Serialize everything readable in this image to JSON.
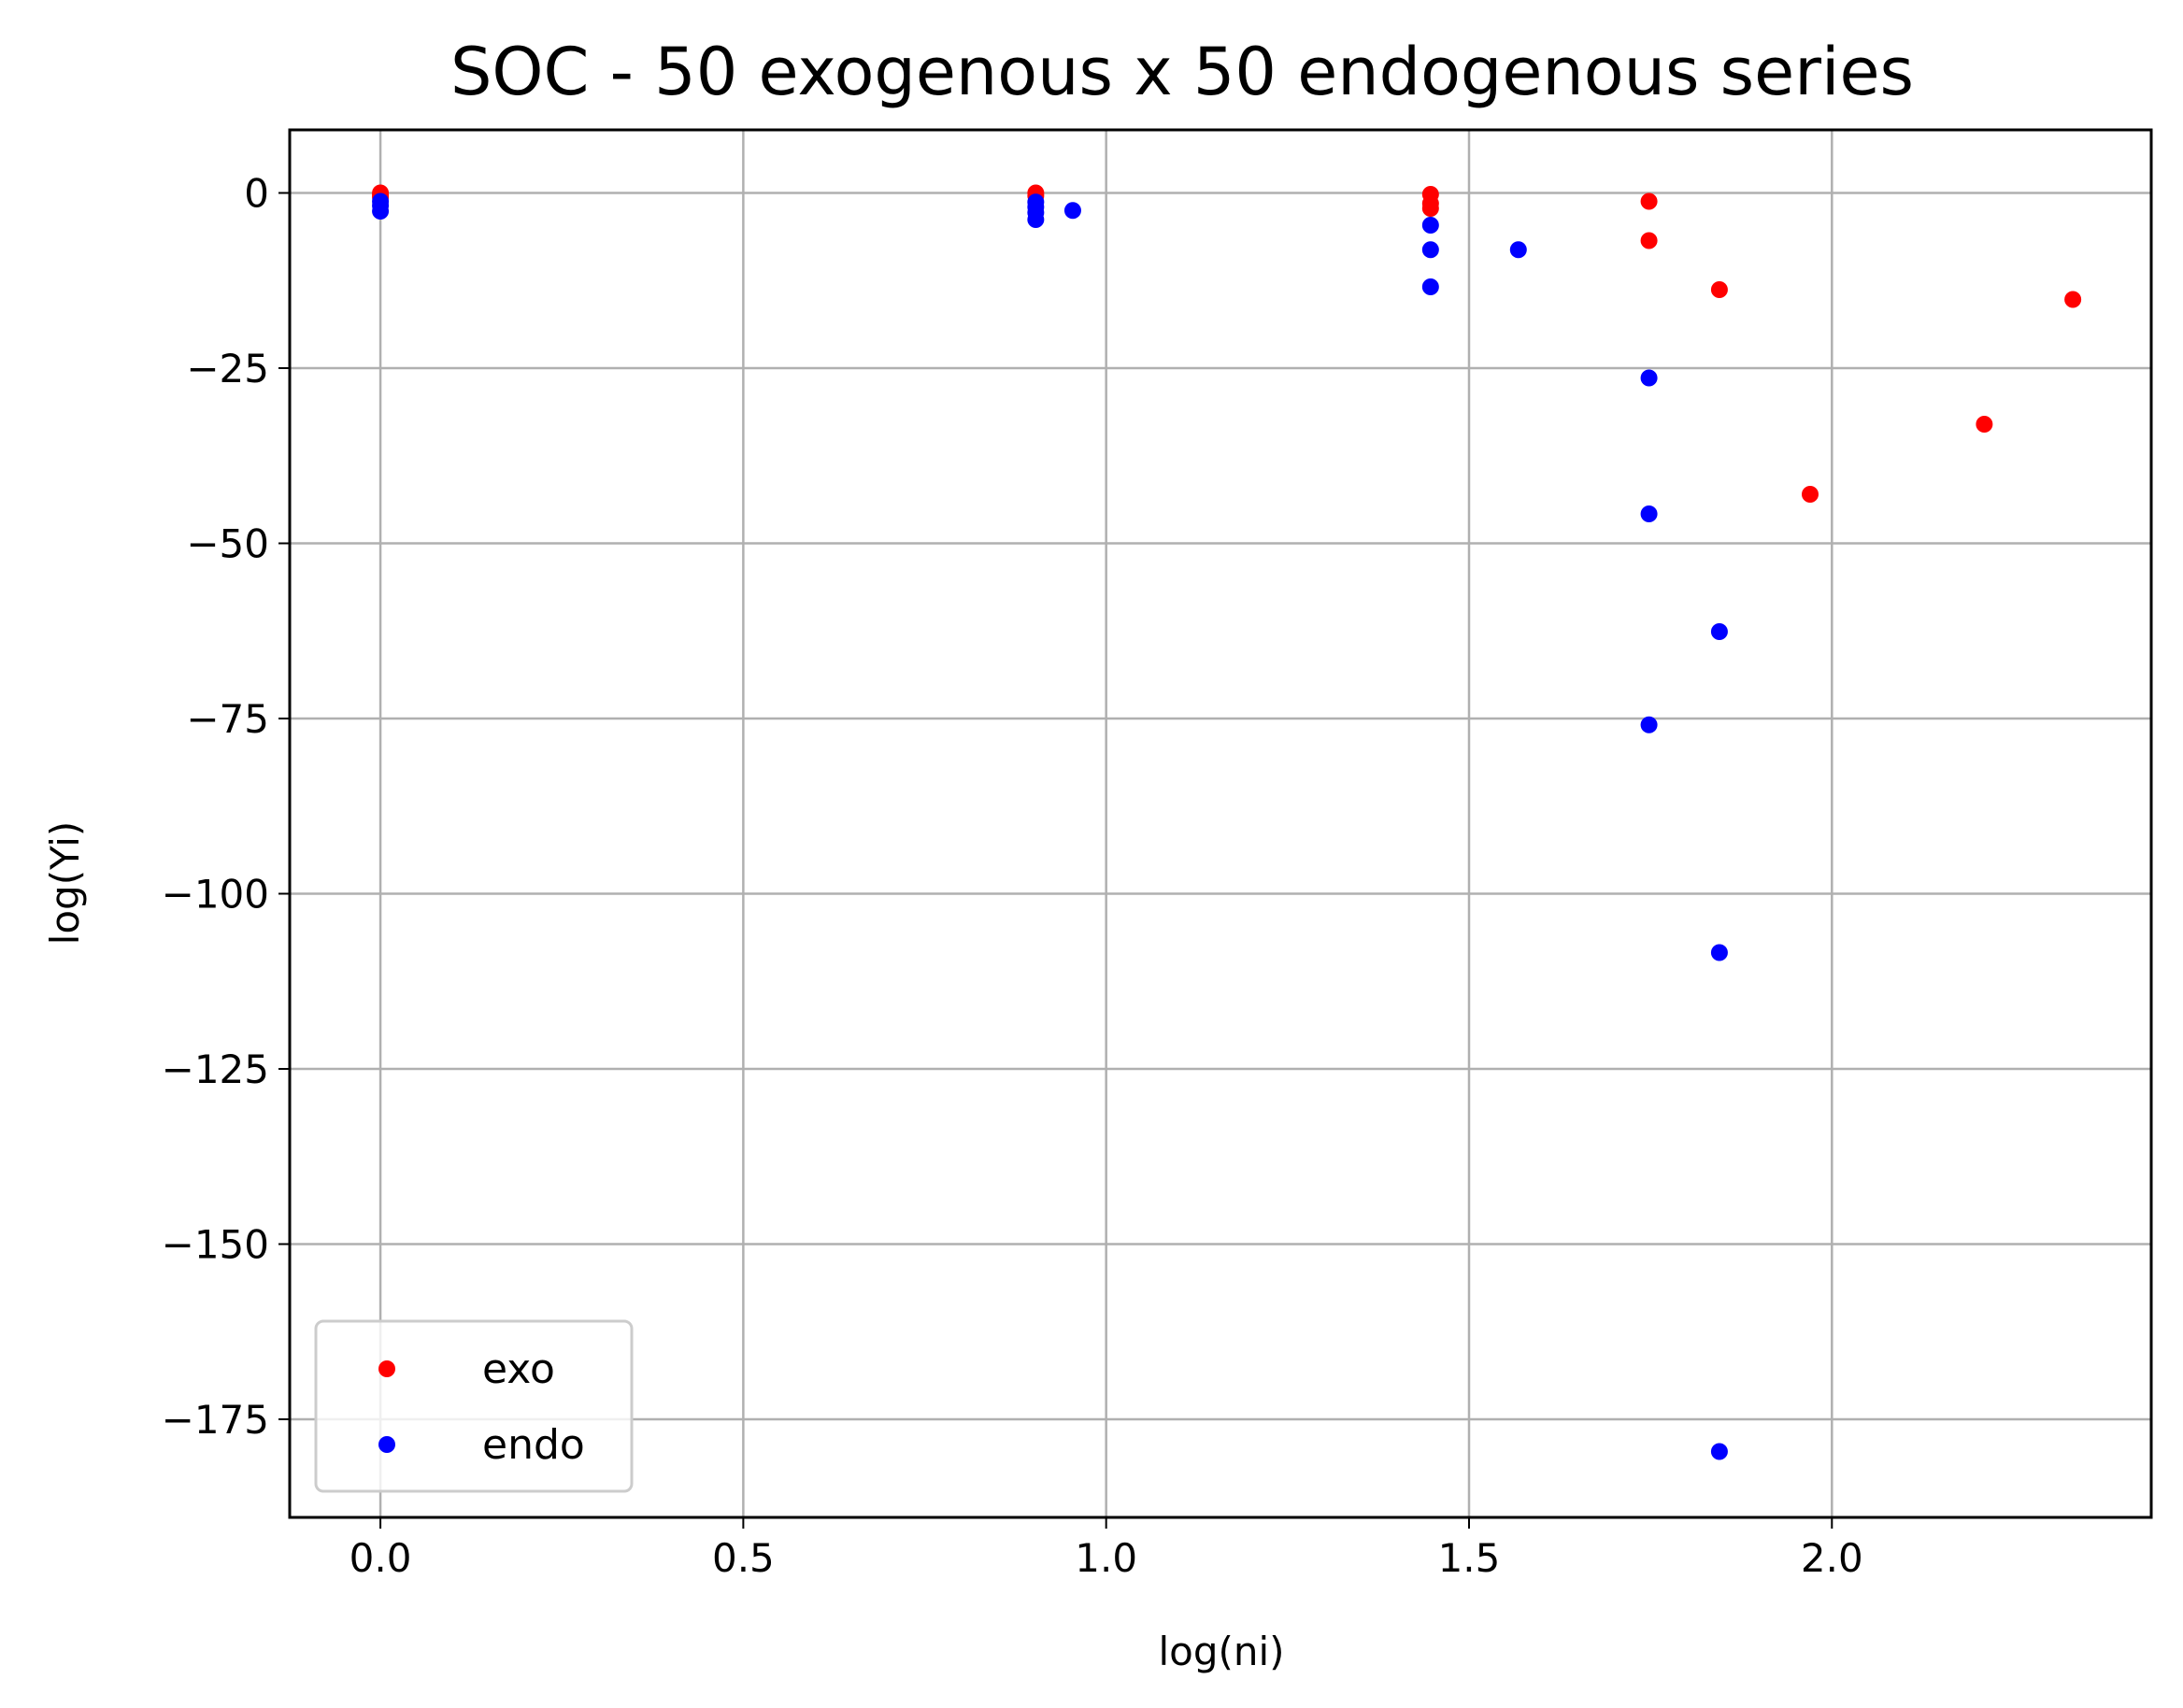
{
  "chart_data": {
    "type": "scatter",
    "title": "SOC - 50 exogenous x 50 endogenous series",
    "xlabel": "log(ni)",
    "ylabel": "log(Yi)",
    "xlim": [
      -0.125,
      2.44
    ],
    "ylim": [
      -189,
      9
    ],
    "xticks": [
      0.0,
      0.5,
      1.0,
      1.5,
      2.0
    ],
    "xtick_labels": [
      "0.0",
      "0.5",
      "1.0",
      "1.5",
      "2.0"
    ],
    "yticks": [
      0,
      -25,
      -50,
      -75,
      -100,
      -125,
      -150,
      -175
    ],
    "ytick_labels": [
      "0",
      "−25",
      "−50",
      "−75",
      "−100",
      "−125",
      "−150",
      "−175"
    ],
    "grid": true,
    "legend_position": "lower-left",
    "series": [
      {
        "name": "exo",
        "color": "#ff0000",
        "points": [
          [
            0.0,
            0.0
          ],
          [
            0.0,
            -0.3
          ],
          [
            0.0,
            -0.6
          ],
          [
            0.903,
            0.0
          ],
          [
            0.903,
            -0.4
          ],
          [
            1.447,
            -0.2
          ],
          [
            1.447,
            -1.5
          ],
          [
            1.447,
            -2.2
          ],
          [
            1.748,
            -1.2
          ],
          [
            1.748,
            -6.8
          ],
          [
            1.845,
            -13.8
          ],
          [
            1.97,
            -43.0
          ],
          [
            2.21,
            -33.0
          ],
          [
            2.332,
            -15.2
          ]
        ]
      },
      {
        "name": "endo",
        "color": "#0000ff",
        "points": [
          [
            0.0,
            -1.2
          ],
          [
            0.0,
            -1.8
          ],
          [
            0.0,
            -2.6
          ],
          [
            0.903,
            -1.3
          ],
          [
            0.903,
            -2.0
          ],
          [
            0.903,
            -2.8
          ],
          [
            0.903,
            -3.8
          ],
          [
            0.954,
            -2.5
          ],
          [
            1.447,
            -4.6
          ],
          [
            1.447,
            -8.1
          ],
          [
            1.447,
            -13.4
          ],
          [
            1.568,
            -8.1
          ],
          [
            1.748,
            -26.4
          ],
          [
            1.748,
            -45.8
          ],
          [
            1.748,
            -75.9
          ],
          [
            1.845,
            -62.6
          ],
          [
            1.845,
            -108.4
          ],
          [
            1.845,
            -179.6
          ]
        ]
      }
    ]
  }
}
